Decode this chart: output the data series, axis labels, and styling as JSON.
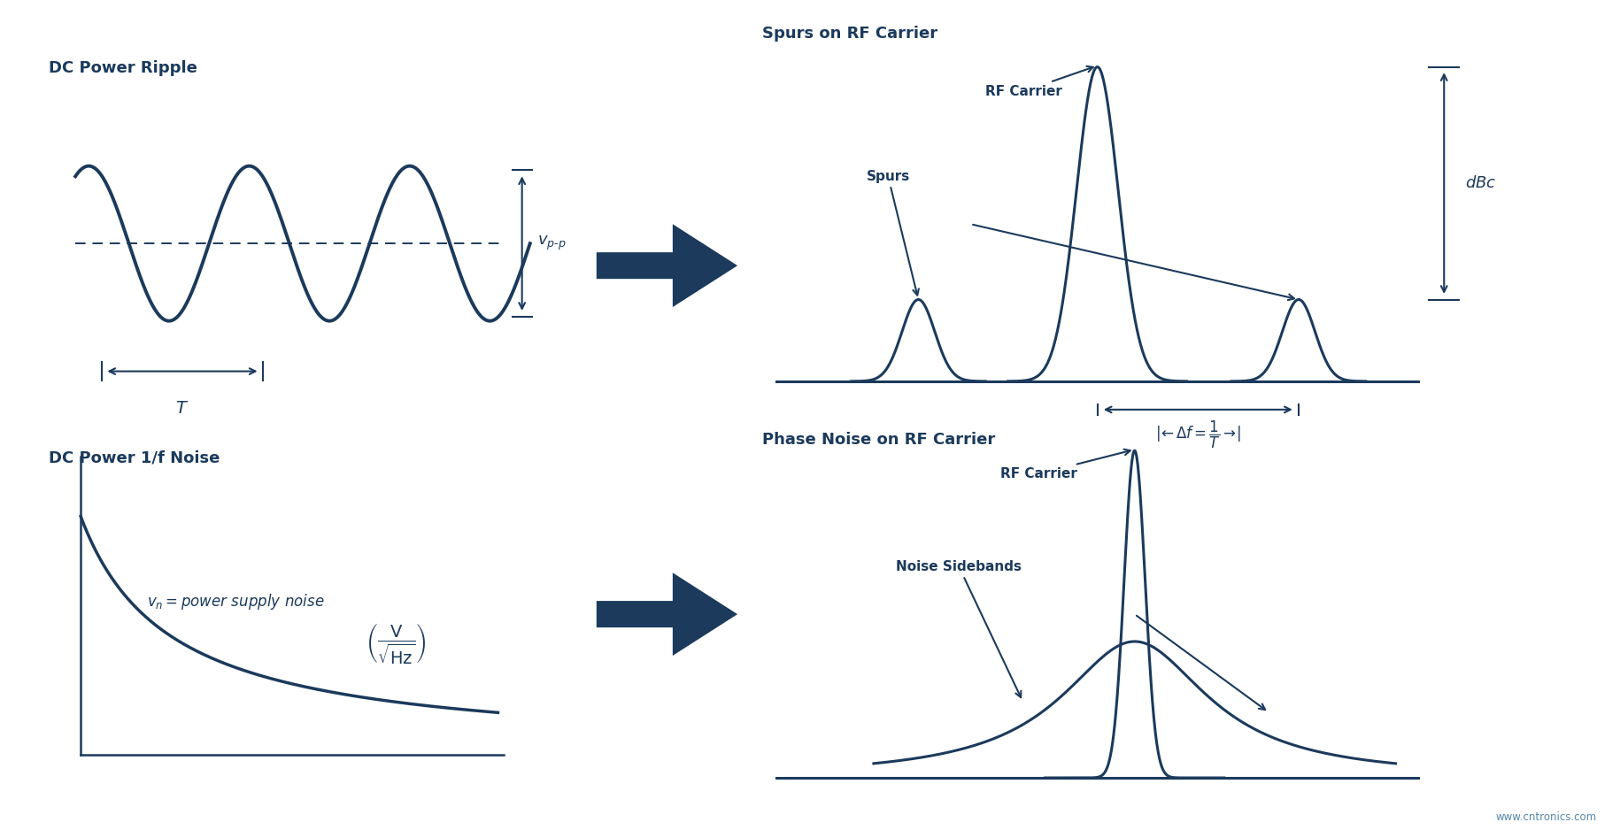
{
  "color": "#1b3a5c",
  "bg_color": "#ffffff",
  "title_fontsize": 13,
  "label_fontsize": 11,
  "website": "www.cntronics.com",
  "top_left_title": "DC Power Ripple",
  "top_right_title": "Spurs on RF Carrier",
  "bottom_left_title": "DC Power 1/f Noise",
  "bottom_right_title": "Phase Noise on RF Carrier"
}
